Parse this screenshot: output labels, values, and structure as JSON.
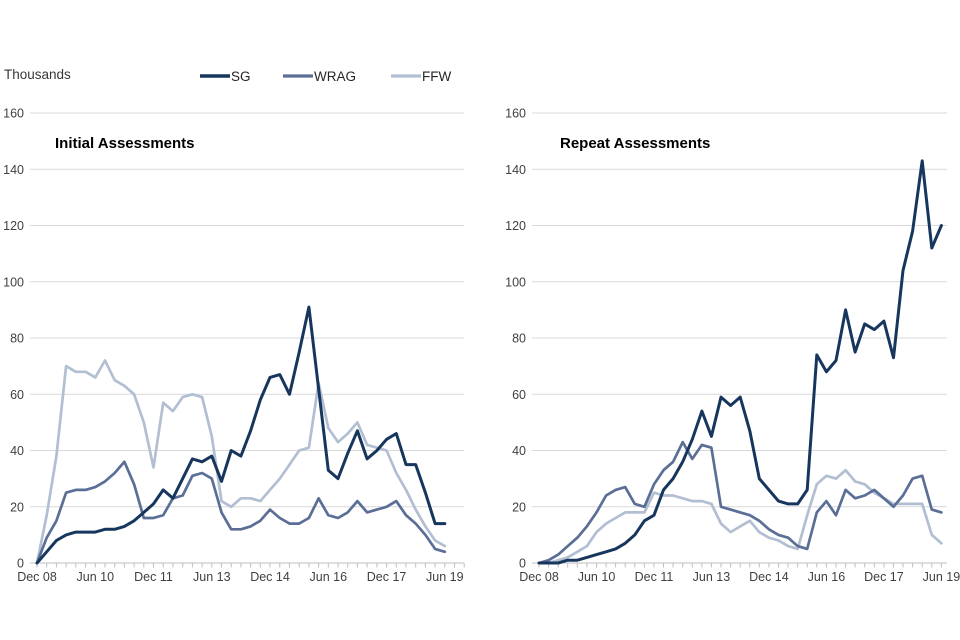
{
  "header": {
    "unit_label": "Thousands"
  },
  "legend": {
    "position": "top",
    "items": [
      {
        "label": "SG",
        "color": "#17365d"
      },
      {
        "label": "WRAG",
        "color": "#5a6e96"
      },
      {
        "label": "FFW",
        "color": "#b2bed2"
      }
    ]
  },
  "axis": {
    "y_ticks": [
      160,
      140,
      120,
      100,
      80,
      60,
      40,
      20,
      0
    ],
    "x_range": [
      "Dec 2008",
      "Jun 2019"
    ],
    "frequency": "quarterly"
  },
  "chart_data": [
    {
      "type": "line",
      "title": "Initial Assessments",
      "ylabel": "Thousands",
      "ylim": [
        0,
        160
      ],
      "grid": true,
      "x_label_every_n_points": 6,
      "x_tick_labels": [
        "Dec 08",
        "Jun 10",
        "Dec 11",
        "Jun 13",
        "Dec 14",
        "Jun 16",
        "Dec 17",
        "Jun 19"
      ],
      "series": [
        {
          "name": "SG",
          "values": [
            0,
            4,
            8,
            10,
            11,
            11,
            11,
            12,
            12,
            13,
            15,
            18,
            21,
            26,
            23,
            30,
            37,
            36,
            38,
            29,
            40,
            38,
            47,
            58,
            66,
            67,
            60,
            75,
            91,
            62,
            33,
            30,
            39,
            47,
            37,
            40,
            44,
            46,
            35,
            35,
            25,
            14,
            14
          ]
        },
        {
          "name": "WRAG",
          "values": [
            0,
            9,
            15,
            25,
            26,
            26,
            27,
            29,
            32,
            36,
            28,
            16,
            16,
            17,
            23,
            24,
            31,
            32,
            30,
            18,
            12,
            12,
            13,
            15,
            19,
            16,
            14,
            14,
            16,
            23,
            17,
            16,
            18,
            22,
            18,
            19,
            20,
            22,
            17,
            14,
            10,
            5,
            4
          ]
        },
        {
          "name": "FFW",
          "values": [
            0,
            17,
            38,
            70,
            68,
            68,
            66,
            72,
            65,
            63,
            60,
            50,
            34,
            57,
            54,
            59,
            60,
            59,
            45,
            22,
            20,
            23,
            23,
            22,
            26,
            30,
            35,
            40,
            41,
            64,
            48,
            43,
            46,
            50,
            42,
            41,
            40,
            32,
            26,
            19,
            13,
            8,
            6
          ]
        }
      ]
    },
    {
      "type": "line",
      "title": "Repeat Assessments",
      "ylabel": "Thousands",
      "ylim": [
        0,
        160
      ],
      "grid": true,
      "x_label_every_n_points": 6,
      "x_tick_labels": [
        "Dec 08",
        "Jun 10",
        "Dec 11",
        "Jun 13",
        "Dec 14",
        "Jun 16",
        "Dec 17",
        "Jun 19"
      ],
      "series": [
        {
          "name": "SG",
          "values": [
            0,
            0,
            0,
            1,
            1,
            2,
            3,
            4,
            5,
            7,
            10,
            15,
            17,
            26,
            30,
            36,
            44,
            54,
            45,
            59,
            56,
            59,
            47,
            30,
            26,
            22,
            21,
            21,
            26,
            74,
            68,
            72,
            90,
            75,
            85,
            83,
            86,
            73,
            104,
            118,
            143,
            112,
            120
          ]
        },
        {
          "name": "WRAG",
          "values": [
            0,
            1,
            3,
            6,
            9,
            13,
            18,
            24,
            26,
            27,
            21,
            20,
            28,
            33,
            36,
            43,
            37,
            42,
            41,
            20,
            19,
            18,
            17,
            15,
            12,
            10,
            9,
            6,
            5,
            18,
            22,
            17,
            26,
            23,
            24,
            26,
            23,
            20,
            24,
            30,
            31,
            19,
            18
          ]
        },
        {
          "name": "FFW",
          "values": [
            0,
            0,
            1,
            2,
            4,
            6,
            11,
            14,
            16,
            18,
            18,
            18,
            25,
            24,
            24,
            23,
            22,
            22,
            21,
            14,
            11,
            13,
            15,
            11,
            9,
            8,
            6,
            5,
            17,
            28,
            31,
            30,
            33,
            29,
            28,
            25,
            23,
            21,
            21,
            21,
            21,
            10,
            7
          ]
        }
      ]
    }
  ]
}
